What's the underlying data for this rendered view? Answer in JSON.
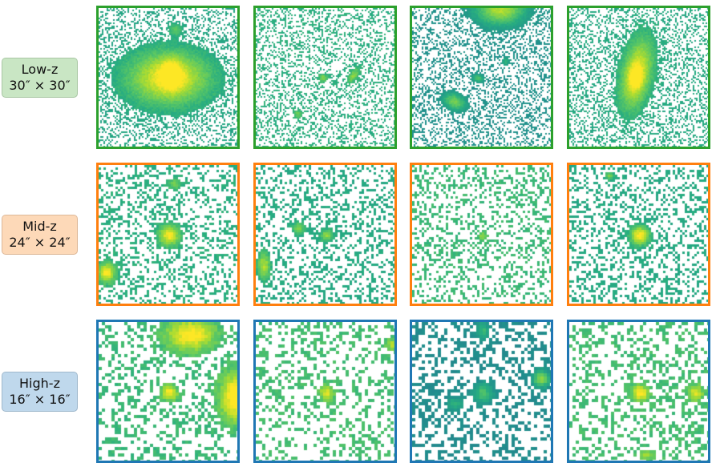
{
  "rows": [
    {
      "label_line1": "Low-z",
      "label_line2": "30″ × 30″",
      "border_color": "#2ca02c",
      "label_bg": "#c9e6c4",
      "label_border": "#a9c7a4",
      "panels": 4
    },
    {
      "label_line1": "Mid-z",
      "label_line2": "24″ × 24″",
      "border_color": "#ff7f0e",
      "label_bg": "#fdd9b8",
      "label_border": "#ddb898",
      "panels": 4
    },
    {
      "label_line1": "High-z",
      "label_line2": "16″ × 16″",
      "border_color": "#1f77b4",
      "label_bg": "#bfd8ec",
      "label_border": "#9fb8cc",
      "panels": 4
    }
  ],
  "colormap": "viridis"
}
